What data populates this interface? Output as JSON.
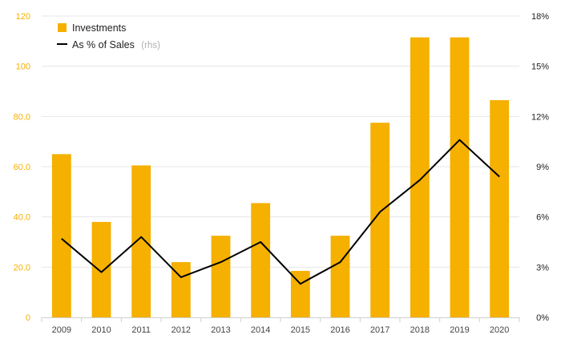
{
  "chart_data": {
    "type": "bar",
    "categories": [
      "2009",
      "2010",
      "2011",
      "2012",
      "2013",
      "2014",
      "2015",
      "2016",
      "2017",
      "2018",
      "2019",
      "2020"
    ],
    "series": [
      {
        "name": "Investments",
        "type": "bar",
        "axis": "left",
        "color": "#F5B000",
        "values": [
          65,
          38,
          60.5,
          22,
          32.5,
          45.5,
          18.5,
          32.5,
          77.5,
          111.5,
          111.5,
          86.5
        ]
      },
      {
        "name": "As % of Sales",
        "name_suffix": "(rhs)",
        "type": "line",
        "axis": "right",
        "color": "#000000",
        "values": [
          4.7,
          2.7,
          4.8,
          2.4,
          3.3,
          4.5,
          2.0,
          3.3,
          6.3,
          8.2,
          10.6,
          8.4
        ]
      }
    ],
    "y_left": {
      "ylim": [
        0,
        120
      ],
      "tick_labels": [
        "0",
        "20.0",
        "40.0",
        "60.0",
        "80.0",
        "100",
        "120"
      ],
      "tick_values": [
        0,
        20,
        40,
        60,
        80,
        100,
        120
      ]
    },
    "y_right": {
      "ylim": [
        0,
        18
      ],
      "tick_labels": [
        "0%",
        "3%",
        "6%",
        "9%",
        "12%",
        "15%",
        "18%"
      ],
      "tick_values": [
        0,
        3,
        6,
        9,
        12,
        15,
        18
      ]
    },
    "grid": true,
    "legend_position": "top-left"
  }
}
